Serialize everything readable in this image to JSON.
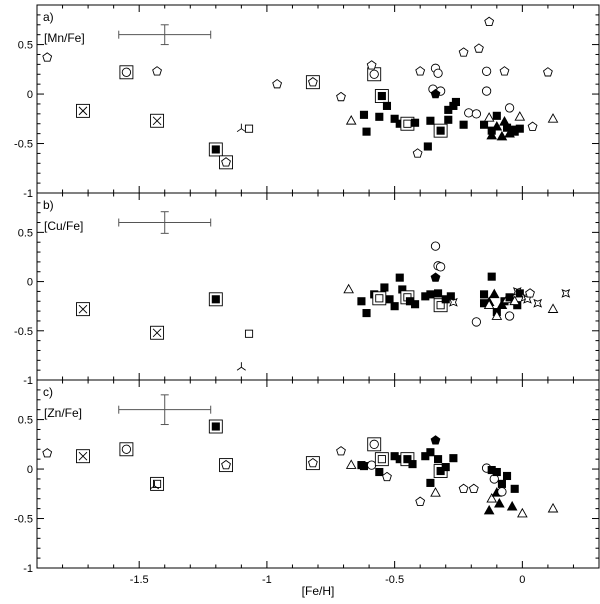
{
  "chart_data": {
    "type": "scatter",
    "xlabel": "[Fe/H]",
    "xlim": [
      -1.9,
      0.3
    ],
    "x_ticks": [
      -1.5,
      -1,
      -0.5,
      0
    ],
    "x_tick_labels": [
      "-1.5",
      "-1",
      "-0.5",
      "0"
    ],
    "grid": false,
    "panels": [
      {
        "id": "a",
        "letter": "a)",
        "label": "[Mn/Fe]",
        "ylim": [
          -1,
          0.9
        ],
        "y_ticks": [
          -1,
          -0.5,
          0,
          0.5
        ],
        "y_tick_labels": [
          "-1",
          "-0.5",
          "0",
          "0.5"
        ],
        "errorbar": {
          "x": -1.4,
          "y": 0.6,
          "xerr": 0.18,
          "yerr": 0.1
        },
        "points": [
          {
            "m": "open-pentagon",
            "x": -1.86,
            "y": 0.37
          },
          {
            "m": "boxed-open-circle",
            "x": -1.55,
            "y": 0.22
          },
          {
            "m": "open-pentagon",
            "x": -1.43,
            "y": 0.23
          },
          {
            "m": "boxed-x",
            "x": -1.72,
            "y": -0.17
          },
          {
            "m": "boxed-x",
            "x": -1.43,
            "y": -0.27
          },
          {
            "m": "boxed-filled-square",
            "x": -1.2,
            "y": -0.56
          },
          {
            "m": "boxed-open-pentagon",
            "x": -1.16,
            "y": -0.69
          },
          {
            "m": "open-threeprong",
            "x": -1.1,
            "y": -0.35
          },
          {
            "m": "open-square",
            "x": -1.07,
            "y": -0.35
          },
          {
            "m": "open-pentagon",
            "x": -0.96,
            "y": 0.1
          },
          {
            "m": "boxed-open-pentagon",
            "x": -0.82,
            "y": 0.12
          },
          {
            "m": "open-pentagon",
            "x": -0.71,
            "y": -0.03
          },
          {
            "m": "open-triangle",
            "x": -0.67,
            "y": -0.27
          },
          {
            "m": "filled-square",
            "x": -0.62,
            "y": -0.21
          },
          {
            "m": "filled-square",
            "x": -0.61,
            "y": -0.38
          },
          {
            "m": "boxed-open-circle",
            "x": -0.58,
            "y": 0.2
          },
          {
            "m": "open-pentagon",
            "x": -0.59,
            "y": 0.29
          },
          {
            "m": "boxed-filled-square",
            "x": -0.55,
            "y": -0.02
          },
          {
            "m": "filled-square",
            "x": -0.56,
            "y": -0.23
          },
          {
            "m": "filled-square",
            "x": -0.53,
            "y": -0.12
          },
          {
            "m": "filled-square",
            "x": -0.5,
            "y": -0.25
          },
          {
            "m": "filled-square",
            "x": -0.48,
            "y": -0.3
          },
          {
            "m": "boxed-open-square",
            "x": -0.45,
            "y": -0.3
          },
          {
            "m": "filled-square",
            "x": -0.42,
            "y": -0.29
          },
          {
            "m": "open-pentagon",
            "x": -0.4,
            "y": 0.23
          },
          {
            "m": "open-pentagon",
            "x": -0.41,
            "y": -0.6
          },
          {
            "m": "filled-square",
            "x": -0.37,
            "y": -0.53
          },
          {
            "m": "filled-square",
            "x": -0.36,
            "y": -0.27
          },
          {
            "m": "open-circle",
            "x": -0.34,
            "y": 0.26
          },
          {
            "m": "open-circle",
            "x": -0.33,
            "y": 0.21
          },
          {
            "m": "open-circle",
            "x": -0.35,
            "y": 0.05
          },
          {
            "m": "open-circle",
            "x": -0.32,
            "y": 0.03
          },
          {
            "m": "filled-pentagon",
            "x": -0.34,
            "y": 0.0
          },
          {
            "m": "boxed-filled-square",
            "x": -0.32,
            "y": -0.37
          },
          {
            "m": "filled-square",
            "x": -0.29,
            "y": -0.26
          },
          {
            "m": "filled-square",
            "x": -0.29,
            "y": -0.16
          },
          {
            "m": "filled-square",
            "x": -0.27,
            "y": -0.12
          },
          {
            "m": "filled-square",
            "x": -0.26,
            "y": -0.08
          },
          {
            "m": "filled-square",
            "x": -0.23,
            "y": -0.31
          },
          {
            "m": "open-pentagon",
            "x": -0.23,
            "y": 0.42
          },
          {
            "m": "open-pentagon",
            "x": -0.17,
            "y": 0.46
          },
          {
            "m": "open-circle",
            "x": -0.21,
            "y": -0.19
          },
          {
            "m": "open-circle",
            "x": -0.18,
            "y": -0.2
          },
          {
            "m": "open-pentagon",
            "x": -0.13,
            "y": 0.73
          },
          {
            "m": "open-circle",
            "x": -0.14,
            "y": 0.23
          },
          {
            "m": "open-circle",
            "x": -0.14,
            "y": 0.03
          },
          {
            "m": "open-pentagon",
            "x": -0.07,
            "y": 0.23
          },
          {
            "m": "filled-square",
            "x": -0.15,
            "y": -0.31
          },
          {
            "m": "filled-square",
            "x": -0.12,
            "y": -0.37
          },
          {
            "m": "filled-triangle",
            "x": -0.12,
            "y": -0.42
          },
          {
            "m": "open-triangle",
            "x": -0.13,
            "y": -0.24
          },
          {
            "m": "filled-square",
            "x": -0.1,
            "y": -0.22
          },
          {
            "m": "filled-triangle",
            "x": -0.1,
            "y": -0.33
          },
          {
            "m": "filled-triangle",
            "x": -0.08,
            "y": -0.43
          },
          {
            "m": "filled-triangle",
            "x": -0.07,
            "y": -0.28
          },
          {
            "m": "filled-square",
            "x": -0.06,
            "y": -0.34
          },
          {
            "m": "filled-square",
            "x": -0.04,
            "y": -0.36
          },
          {
            "m": "filled-square",
            "x": -0.03,
            "y": -0.38
          },
          {
            "m": "filled-triangle",
            "x": -0.05,
            "y": -0.4
          },
          {
            "m": "open-circle",
            "x": -0.05,
            "y": -0.14
          },
          {
            "m": "open-triangle",
            "x": -0.01,
            "y": -0.23
          },
          {
            "m": "filled-square",
            "x": -0.01,
            "y": -0.35
          },
          {
            "m": "open-pentagon",
            "x": 0.04,
            "y": -0.33
          },
          {
            "m": "open-pentagon",
            "x": 0.1,
            "y": 0.22
          },
          {
            "m": "open-triangle",
            "x": 0.12,
            "y": -0.25
          }
        ]
      },
      {
        "id": "b",
        "letter": "b)",
        "label": "[Cu/Fe]",
        "ylim": [
          -1,
          0.9
        ],
        "y_ticks": [
          -1,
          -0.5,
          0,
          0.5
        ],
        "y_tick_labels": [
          "-1",
          "-0.5",
          "0",
          "0.5"
        ],
        "errorbar": {
          "x": -1.4,
          "y": 0.6,
          "xerr": 0.18,
          "yerr": 0.11
        },
        "points": [
          {
            "m": "boxed-x",
            "x": -1.72,
            "y": -0.28
          },
          {
            "m": "boxed-x",
            "x": -1.43,
            "y": -0.52
          },
          {
            "m": "boxed-filled-square",
            "x": -1.2,
            "y": -0.18
          },
          {
            "m": "open-square",
            "x": -1.07,
            "y": -0.53
          },
          {
            "m": "open-threeprong",
            "x": -1.1,
            "y": -0.87
          },
          {
            "m": "open-triangle",
            "x": -0.68,
            "y": -0.08
          },
          {
            "m": "filled-square",
            "x": -0.63,
            "y": -0.2
          },
          {
            "m": "filled-square",
            "x": -0.61,
            "y": -0.32
          },
          {
            "m": "filled-square",
            "x": -0.58,
            "y": -0.13
          },
          {
            "m": "boxed-open-square",
            "x": -0.56,
            "y": -0.17
          },
          {
            "m": "filled-square",
            "x": -0.54,
            "y": -0.06
          },
          {
            "m": "filled-square",
            "x": -0.52,
            "y": -0.18
          },
          {
            "m": "filled-square",
            "x": -0.5,
            "y": -0.25
          },
          {
            "m": "filled-square",
            "x": -0.48,
            "y": 0.04
          },
          {
            "m": "filled-square",
            "x": -0.47,
            "y": -0.08
          },
          {
            "m": "boxed-open-square",
            "x": -0.45,
            "y": -0.16
          },
          {
            "m": "filled-square",
            "x": -0.44,
            "y": -0.2
          },
          {
            "m": "filled-square",
            "x": -0.42,
            "y": -0.23
          },
          {
            "m": "filled-square",
            "x": -0.38,
            "y": -0.15
          },
          {
            "m": "filled-square",
            "x": -0.36,
            "y": -0.13
          },
          {
            "m": "open-circle",
            "x": -0.34,
            "y": 0.36
          },
          {
            "m": "open-circle",
            "x": -0.33,
            "y": 0.16
          },
          {
            "m": "open-circle",
            "x": -0.32,
            "y": 0.15
          },
          {
            "m": "filled-pentagon",
            "x": -0.34,
            "y": 0.04
          },
          {
            "m": "filled-square",
            "x": -0.33,
            "y": -0.12
          },
          {
            "m": "boxed-open-square",
            "x": -0.32,
            "y": -0.24
          },
          {
            "m": "filled-square",
            "x": -0.3,
            "y": -0.18
          },
          {
            "m": "filled-square",
            "x": -0.28,
            "y": -0.15
          },
          {
            "m": "open-star4",
            "x": -0.27,
            "y": -0.21
          },
          {
            "m": "open-circle",
            "x": -0.18,
            "y": -0.41
          },
          {
            "m": "filled-square",
            "x": -0.15,
            "y": -0.22
          },
          {
            "m": "filled-square",
            "x": -0.15,
            "y": -0.13
          },
          {
            "m": "filled-triangle",
            "x": -0.13,
            "y": -0.21
          },
          {
            "m": "open-triangle",
            "x": -0.13,
            "y": -0.24
          },
          {
            "m": "filled-square",
            "x": -0.12,
            "y": 0.05
          },
          {
            "m": "filled-triangle",
            "x": -0.11,
            "y": -0.13
          },
          {
            "m": "filled-square",
            "x": -0.1,
            "y": -0.31
          },
          {
            "m": "open-triangle",
            "x": -0.1,
            "y": -0.35
          },
          {
            "m": "filled-triangle",
            "x": -0.08,
            "y": -0.24
          },
          {
            "m": "filled-square",
            "x": -0.07,
            "y": -0.2
          },
          {
            "m": "open-triangle",
            "x": -0.06,
            "y": -0.18
          },
          {
            "m": "filled-square",
            "x": -0.05,
            "y": -0.16
          },
          {
            "m": "open-circle",
            "x": -0.05,
            "y": -0.35
          },
          {
            "m": "open-star4",
            "x": -0.02,
            "y": -0.1
          },
          {
            "m": "filled-square",
            "x": -0.02,
            "y": -0.24
          },
          {
            "m": "open-triangle",
            "x": -0.03,
            "y": -0.2
          },
          {
            "m": "filled-square",
            "x": -0.01,
            "y": -0.12
          },
          {
            "m": "open-star4",
            "x": 0.01,
            "y": -0.16
          },
          {
            "m": "open-star4",
            "x": 0.02,
            "y": -0.18
          },
          {
            "m": "open-pentagon",
            "x": 0.03,
            "y": -0.12
          },
          {
            "m": "open-star4",
            "x": 0.06,
            "y": -0.22
          },
          {
            "m": "open-triangle",
            "x": 0.12,
            "y": -0.28
          },
          {
            "m": "open-star4",
            "x": 0.17,
            "y": -0.12
          }
        ]
      },
      {
        "id": "c",
        "letter": "c)",
        "label": "[Zn/Fe]",
        "ylim": [
          -1,
          0.9
        ],
        "y_ticks": [
          -1,
          -0.5,
          0,
          0.5
        ],
        "y_tick_labels": [
          "-1",
          "-0.5",
          "0",
          "0.5"
        ],
        "errorbar": {
          "x": -1.4,
          "y": 0.6,
          "xerr": 0.18,
          "yerr": 0.15
        },
        "points": [
          {
            "m": "open-pentagon",
            "x": -1.86,
            "y": 0.16
          },
          {
            "m": "boxed-x",
            "x": -1.72,
            "y": 0.13
          },
          {
            "m": "boxed-open-circle",
            "x": -1.55,
            "y": 0.2
          },
          {
            "m": "boxed-open-square",
            "x": -1.43,
            "y": -0.15
          },
          {
            "m": "open-threeprong",
            "x": -1.44,
            "y": -0.17
          },
          {
            "m": "boxed-filled-square",
            "x": -1.2,
            "y": 0.43
          },
          {
            "m": "boxed-open-pentagon",
            "x": -1.16,
            "y": 0.04
          },
          {
            "m": "boxed-open-pentagon",
            "x": -0.82,
            "y": 0.06
          },
          {
            "m": "open-pentagon",
            "x": -0.71,
            "y": 0.18
          },
          {
            "m": "open-triangle",
            "x": -0.67,
            "y": 0.04
          },
          {
            "m": "filled-square",
            "x": -0.63,
            "y": 0.04
          },
          {
            "m": "filled-square",
            "x": -0.62,
            "y": 0.03
          },
          {
            "m": "open-circle",
            "x": -0.59,
            "y": 0.04
          },
          {
            "m": "boxed-open-circle",
            "x": -0.58,
            "y": 0.25
          },
          {
            "m": "boxed-open-square",
            "x": -0.55,
            "y": 0.1
          },
          {
            "m": "filled-square",
            "x": -0.56,
            "y": -0.03
          },
          {
            "m": "open-pentagon",
            "x": -0.53,
            "y": -0.08
          },
          {
            "m": "filled-square",
            "x": -0.5,
            "y": 0.13
          },
          {
            "m": "filled-square",
            "x": -0.48,
            "y": 0.1
          },
          {
            "m": "boxed-filled-square",
            "x": -0.45,
            "y": 0.1
          },
          {
            "m": "filled-square",
            "x": -0.43,
            "y": 0.05
          },
          {
            "m": "open-pentagon",
            "x": -0.4,
            "y": -0.33
          },
          {
            "m": "filled-square",
            "x": -0.38,
            "y": 0.13
          },
          {
            "m": "filled-square",
            "x": -0.36,
            "y": 0.17
          },
          {
            "m": "filled-square",
            "x": -0.36,
            "y": -0.14
          },
          {
            "m": "filled-pentagon",
            "x": -0.34,
            "y": 0.29
          },
          {
            "m": "filled-square",
            "x": -0.33,
            "y": 0.1
          },
          {
            "m": "open-triangle",
            "x": -0.34,
            "y": -0.24
          },
          {
            "m": "boxed-filled-square",
            "x": -0.32,
            "y": -0.02
          },
          {
            "m": "filled-square",
            "x": -0.3,
            "y": 0.02
          },
          {
            "m": "filled-square",
            "x": -0.27,
            "y": 0.11
          },
          {
            "m": "open-pentagon",
            "x": -0.23,
            "y": -0.2
          },
          {
            "m": "open-pentagon",
            "x": -0.19,
            "y": -0.2
          },
          {
            "m": "open-circle",
            "x": -0.14,
            "y": 0.01
          },
          {
            "m": "filled-square",
            "x": -0.12,
            "y": -0.01
          },
          {
            "m": "open-circle",
            "x": -0.11,
            "y": -0.1
          },
          {
            "m": "filled-square",
            "x": -0.1,
            "y": -0.03
          },
          {
            "m": "filled-square",
            "x": -0.08,
            "y": -0.15
          },
          {
            "m": "filled-square",
            "x": -0.06,
            "y": -0.07
          },
          {
            "m": "filled-triangle",
            "x": -0.13,
            "y": -0.42
          },
          {
            "m": "open-triangle",
            "x": -0.12,
            "y": -0.3
          },
          {
            "m": "filled-triangle",
            "x": -0.09,
            "y": -0.35
          },
          {
            "m": "filled-triangle",
            "x": -0.1,
            "y": -0.24
          },
          {
            "m": "open-circle",
            "x": -0.08,
            "y": -0.23
          },
          {
            "m": "filled-square",
            "x": -0.03,
            "y": -0.2
          },
          {
            "m": "filled-triangle",
            "x": -0.04,
            "y": -0.38
          },
          {
            "m": "open-triangle",
            "x": 0.0,
            "y": -0.45
          },
          {
            "m": "open-triangle",
            "x": 0.12,
            "y": -0.4
          }
        ]
      }
    ]
  }
}
